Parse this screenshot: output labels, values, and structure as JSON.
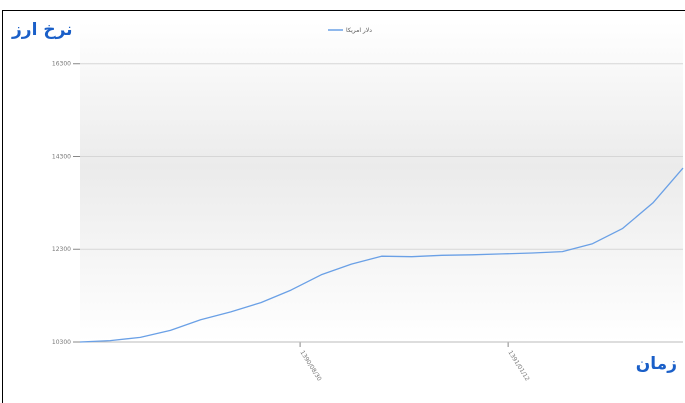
{
  "chart_data": {
    "type": "line",
    "ylabel": "نرخ ارز",
    "xlabel": "زمان",
    "ylim": [
      10300,
      17200
    ],
    "y_ticks": [
      10300,
      12300,
      14300,
      16300
    ],
    "x_ticks": [
      "1390/08/30",
      "1391/01/12"
    ],
    "grid": true,
    "legend_position": "top-center",
    "series": [
      {
        "name": "دلار امریکا",
        "color": "#6aa0e6",
        "x": [
          0,
          0.05,
          0.1,
          0.15,
          0.2,
          0.25,
          0.3,
          0.35,
          0.4,
          0.45,
          0.5,
          0.55,
          0.6,
          0.65,
          0.7,
          0.75,
          0.8,
          0.85,
          0.9,
          0.95,
          1.0
        ],
        "values": [
          10300,
          10330,
          10400,
          10550,
          10780,
          10950,
          11150,
          11420,
          11750,
          11980,
          12150,
          12140,
          12170,
          12180,
          12200,
          12220,
          12250,
          12420,
          12750,
          13300,
          14050
        ]
      }
    ]
  }
}
